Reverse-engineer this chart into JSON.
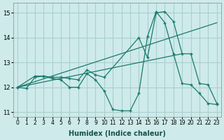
{
  "xlabel": "Humidex (Indice chaleur)",
  "background_color": "#ceeaea",
  "grid_color": "#aacfcf",
  "line_color": "#1a7a6e",
  "xlim": [
    -0.5,
    23.5
  ],
  "ylim": [
    10.8,
    15.4
  ],
  "yticks": [
    11,
    12,
    13,
    14,
    15
  ],
  "xticks": [
    0,
    1,
    2,
    3,
    4,
    5,
    6,
    7,
    8,
    9,
    10,
    11,
    12,
    13,
    14,
    15,
    16,
    17,
    18,
    19,
    20,
    21,
    22,
    23
  ],
  "line1_x": [
    0,
    1,
    2,
    3,
    4,
    5,
    6,
    7,
    8,
    9,
    10,
    11,
    12,
    13,
    14,
    15,
    16,
    17,
    18,
    19,
    20,
    21,
    22,
    23
  ],
  "line1_y": [
    12.0,
    11.95,
    12.4,
    12.45,
    12.35,
    12.3,
    12.0,
    12.0,
    12.55,
    12.3,
    11.85,
    11.1,
    11.05,
    11.05,
    11.75,
    14.05,
    15.05,
    14.6,
    13.35,
    12.15,
    12.1,
    11.75,
    11.35,
    11.3
  ],
  "line2_x": [
    0,
    2,
    3,
    4,
    5,
    6,
    7,
    8,
    9,
    10,
    14,
    15,
    16,
    17,
    18,
    19,
    20,
    21,
    22,
    23
  ],
  "line2_y": [
    12.0,
    12.45,
    12.45,
    12.4,
    12.4,
    12.35,
    12.3,
    12.7,
    12.5,
    12.4,
    14.0,
    13.2,
    15.0,
    15.05,
    14.65,
    13.35,
    13.35,
    12.15,
    12.1,
    11.35
  ],
  "line3_x": [
    0,
    23
  ],
  "line3_y": [
    12.0,
    14.6
  ],
  "line4_x": [
    0,
    19
  ],
  "line4_y": [
    12.0,
    13.35
  ]
}
